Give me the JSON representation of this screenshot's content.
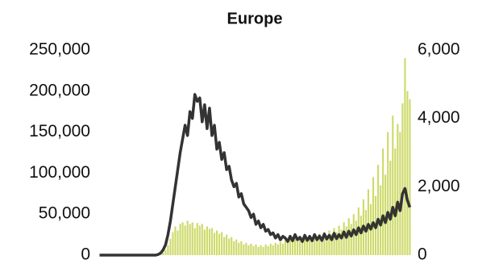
{
  "chart_data": {
    "type": "bar_line",
    "title": "Europe",
    "ylim": [
      0,
      250000
    ],
    "yticks": [
      0,
      {
        "value": 50000,
        "label": "50,000"
      },
      {
        "value": 100000,
        "label": "100,000"
      },
      {
        "value": 150000,
        "label": "150,000"
      },
      {
        "value": 200000,
        "label": "200,000"
      },
      {
        "value": 250000,
        "label": "250,000"
      }
    ],
    "y2lim": [
      0,
      6000
    ],
    "y2ticks": [
      0,
      {
        "value": 2000,
        "label": "2,000"
      },
      {
        "value": 4000,
        "label": "4,000"
      },
      {
        "value": 6000,
        "label": "6,000"
      }
    ],
    "grid": false,
    "series": [
      {
        "type": "bar",
        "color": "#cdda6a",
        "values": [
          0,
          0,
          0,
          0,
          0,
          0,
          0,
          0,
          0,
          0,
          0,
          0,
          0,
          0,
          0,
          0,
          0,
          0,
          0,
          0,
          0,
          0,
          100,
          300,
          800,
          1500,
          3000,
          6000,
          12000,
          20000,
          28000,
          35000,
          30000,
          38000,
          40000,
          36000,
          42000,
          38000,
          40000,
          33000,
          39000,
          36000,
          38000,
          31000,
          35000,
          32000,
          33000,
          27000,
          30000,
          26000,
          28000,
          22000,
          25000,
          20000,
          22000,
          17000,
          19000,
          15000,
          17000,
          13000,
          15000,
          12000,
          14000,
          11000,
          13000,
          10000,
          12000,
          10000,
          13000,
          11000,
          14000,
          12000,
          15000,
          13000,
          16000,
          14000,
          18000,
          15000,
          19000,
          16000,
          20000,
          17000,
          21000,
          18000,
          23000,
          19000,
          24000,
          20000,
          25000,
          21000,
          26000,
          22000,
          28000,
          24000,
          30000,
          26000,
          33000,
          28000,
          36000,
          31000,
          40000,
          35000,
          45000,
          38000,
          50000,
          42000,
          58000,
          48000,
          68000,
          55000,
          80000,
          62000,
          95000,
          72000,
          110000,
          85000,
          130000,
          98000,
          150000,
          115000,
          170000,
          130000,
          160000,
          150000,
          185000,
          240000,
          200000,
          190000
        ]
      },
      {
        "type": "line",
        "axis": "y2",
        "color": "#333333",
        "values": [
          0,
          0,
          0,
          0,
          0,
          0,
          0,
          0,
          0,
          0,
          0,
          0,
          0,
          0,
          0,
          0,
          0,
          0,
          0,
          0,
          0,
          0,
          0,
          0,
          20,
          60,
          150,
          300,
          600,
          1000,
          1500,
          2000,
          2500,
          3000,
          3400,
          3800,
          3500,
          4200,
          4000,
          4700,
          4500,
          4600,
          3900,
          4400,
          3700,
          4300,
          3500,
          3800,
          3100,
          3300,
          2800,
          3000,
          2500,
          2600,
          2200,
          2000,
          2100,
          1700,
          1800,
          1500,
          1400,
          1300,
          1100,
          1200,
          900,
          1000,
          800,
          900,
          700,
          750,
          600,
          650,
          500,
          600,
          450,
          550,
          500,
          400,
          550,
          420,
          600,
          450,
          520,
          400,
          580,
          430,
          550,
          420,
          600,
          450,
          560,
          430,
          620,
          470,
          580,
          450,
          640,
          480,
          600,
          500,
          680,
          520,
          700,
          560,
          740,
          600,
          800,
          650,
          850,
          700,
          900,
          760,
          950,
          800,
          1050,
          880,
          1150,
          950,
          1250,
          1050,
          1400,
          1150,
          1550,
          1300,
          1800,
          1950,
          1600,
          1400
        ]
      }
    ]
  }
}
